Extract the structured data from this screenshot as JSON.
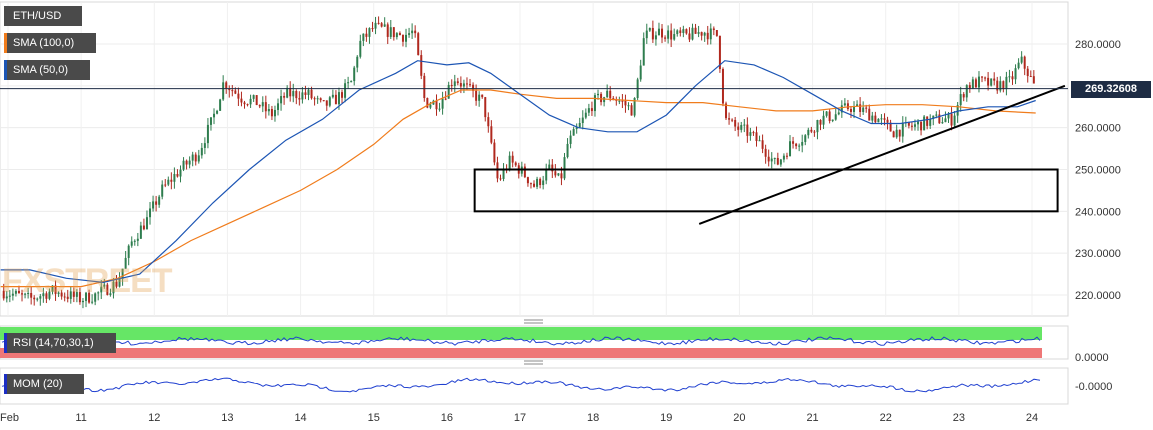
{
  "symbol": "ETH/USD",
  "watermark": "FXSTREET",
  "legend": [
    {
      "label": "ETH/USD",
      "color": "#3a7a4a"
    },
    {
      "label": "SMA (100,0)",
      "color": "#f07c1c"
    },
    {
      "label": "SMA (50,0)",
      "color": "#1c55b4"
    }
  ],
  "price_tag": "269.32608",
  "panels": {
    "rsi": {
      "label": "RSI (14,70,30,1)",
      "axis_label": "0.0000",
      "overbought_color": "#66e666",
      "oversold_color": "#ee7777",
      "line_color": "#2040d0"
    },
    "mom": {
      "label": "MOM (20)",
      "axis_label": "-0.0000",
      "line_color": "#2040d0"
    }
  },
  "chart_data": {
    "type": "candlestick",
    "title": "",
    "xlabel": "",
    "ylabel": "",
    "ylim": [
      214,
      291
    ],
    "y_ticks": [
      "280.0000",
      "270.0000",
      "260.0000",
      "250.0000",
      "240.0000",
      "230.0000",
      "220.0000"
    ],
    "y_tick_values": [
      280,
      270,
      260,
      250,
      240,
      230,
      220
    ],
    "x_ticks": [
      "Feb",
      "11",
      "12",
      "13",
      "14",
      "15",
      "16",
      "17",
      "18",
      "19",
      "20",
      "21",
      "22",
      "23",
      "24"
    ],
    "x_tick_days": [
      10,
      11,
      12,
      13,
      14,
      15,
      16,
      17,
      18,
      19,
      20,
      21,
      22,
      23,
      24
    ],
    "last_price": 269.33,
    "colors": {
      "up": "#2e7d4e",
      "down": "#b0281e",
      "sma100": "#f07c1c",
      "sma50": "#1c55b4"
    },
    "close_path": [
      [
        9.9,
        221
      ],
      [
        10.3,
        219
      ],
      [
        10.6,
        221
      ],
      [
        11.0,
        219
      ],
      [
        11.2,
        220
      ],
      [
        11.5,
        223
      ],
      [
        11.7,
        233
      ],
      [
        11.9,
        238
      ],
      [
        12.1,
        245
      ],
      [
        12.3,
        249
      ],
      [
        12.6,
        254
      ],
      [
        12.8,
        262
      ],
      [
        12.95,
        271
      ],
      [
        13.2,
        267
      ],
      [
        13.4,
        266
      ],
      [
        13.6,
        263
      ],
      [
        13.8,
        268
      ],
      [
        14.1,
        268
      ],
      [
        14.3,
        265
      ],
      [
        14.5,
        267
      ],
      [
        14.7,
        271
      ],
      [
        14.8,
        280
      ],
      [
        15.0,
        284
      ],
      [
        15.2,
        283
      ],
      [
        15.4,
        282
      ],
      [
        15.55,
        283
      ],
      [
        15.7,
        266
      ],
      [
        15.9,
        266
      ],
      [
        16.1,
        272
      ],
      [
        16.3,
        269
      ],
      [
        16.5,
        266
      ],
      [
        16.6,
        256
      ],
      [
        16.7,
        247
      ],
      [
        16.85,
        252
      ],
      [
        17.0,
        250
      ],
      [
        17.2,
        246
      ],
      [
        17.4,
        250
      ],
      [
        17.55,
        247
      ],
      [
        17.65,
        256
      ],
      [
        17.8,
        260
      ],
      [
        18.0,
        266
      ],
      [
        18.2,
        268
      ],
      [
        18.4,
        266
      ],
      [
        18.55,
        264
      ],
      [
        18.7,
        282
      ],
      [
        18.9,
        283
      ],
      [
        19.1,
        282
      ],
      [
        19.3,
        282
      ],
      [
        19.5,
        283
      ],
      [
        19.7,
        282
      ],
      [
        19.8,
        262
      ],
      [
        19.95,
        260
      ],
      [
        20.1,
        259
      ],
      [
        20.3,
        256
      ],
      [
        20.5,
        251
      ],
      [
        20.7,
        256
      ],
      [
        20.9,
        258
      ],
      [
        21.1,
        262
      ],
      [
        21.3,
        263
      ],
      [
        21.5,
        265
      ],
      [
        21.7,
        264
      ],
      [
        21.9,
        262
      ],
      [
        22.1,
        259
      ],
      [
        22.3,
        260
      ],
      [
        22.5,
        261
      ],
      [
        22.7,
        262
      ],
      [
        22.9,
        262
      ],
      [
        23.1,
        270
      ],
      [
        23.3,
        271
      ],
      [
        23.5,
        270
      ],
      [
        23.7,
        271
      ],
      [
        23.85,
        276
      ],
      [
        23.95,
        273
      ],
      [
        24.05,
        269
      ]
    ],
    "sma100": [
      [
        9.9,
        222
      ],
      [
        10.5,
        222
      ],
      [
        11.0,
        222
      ],
      [
        11.5,
        224
      ],
      [
        12.0,
        228
      ],
      [
        12.5,
        233
      ],
      [
        13.0,
        237
      ],
      [
        13.5,
        241
      ],
      [
        14.0,
        245
      ],
      [
        14.5,
        250
      ],
      [
        15.0,
        256
      ],
      [
        15.4,
        262
      ],
      [
        15.8,
        266
      ],
      [
        16.2,
        269
      ],
      [
        16.6,
        269
      ],
      [
        17.0,
        268
      ],
      [
        17.5,
        267
      ],
      [
        18.0,
        267
      ],
      [
        18.5,
        266.5
      ],
      [
        19.0,
        266
      ],
      [
        19.5,
        266
      ],
      [
        20.0,
        265
      ],
      [
        20.5,
        264
      ],
      [
        21.0,
        264
      ],
      [
        21.5,
        265
      ],
      [
        22.0,
        265.5
      ],
      [
        22.5,
        265.5
      ],
      [
        23.0,
        265
      ],
      [
        23.5,
        264
      ],
      [
        24.05,
        263.5
      ]
    ],
    "sma50": [
      [
        9.9,
        226
      ],
      [
        10.3,
        226
      ],
      [
        10.8,
        224
      ],
      [
        11.3,
        223
      ],
      [
        11.8,
        225
      ],
      [
        12.3,
        233
      ],
      [
        12.8,
        242
      ],
      [
        13.3,
        250
      ],
      [
        13.8,
        257
      ],
      [
        14.3,
        262
      ],
      [
        14.8,
        269
      ],
      [
        15.3,
        273
      ],
      [
        15.6,
        276
      ],
      [
        16.0,
        275
      ],
      [
        16.3,
        275.5
      ],
      [
        16.6,
        273
      ],
      [
        17.0,
        268
      ],
      [
        17.4,
        263
      ],
      [
        17.8,
        260
      ],
      [
        18.2,
        259
      ],
      [
        18.6,
        259
      ],
      [
        19.0,
        263
      ],
      [
        19.4,
        270
      ],
      [
        19.8,
        276
      ],
      [
        20.2,
        275
      ],
      [
        20.6,
        272
      ],
      [
        21.0,
        268
      ],
      [
        21.4,
        264
      ],
      [
        21.8,
        261
      ],
      [
        22.2,
        261
      ],
      [
        22.6,
        262
      ],
      [
        23.0,
        264
      ],
      [
        23.4,
        265
      ],
      [
        23.8,
        265
      ],
      [
        24.05,
        266.5
      ]
    ],
    "annotations": [
      {
        "type": "rectangle",
        "x_range": [
          16.38,
          24.35
        ],
        "y_range": [
          240,
          250
        ]
      },
      {
        "type": "trendline",
        "from": [
          19.45,
          237
        ],
        "to": [
          24.45,
          270
        ]
      }
    ]
  }
}
